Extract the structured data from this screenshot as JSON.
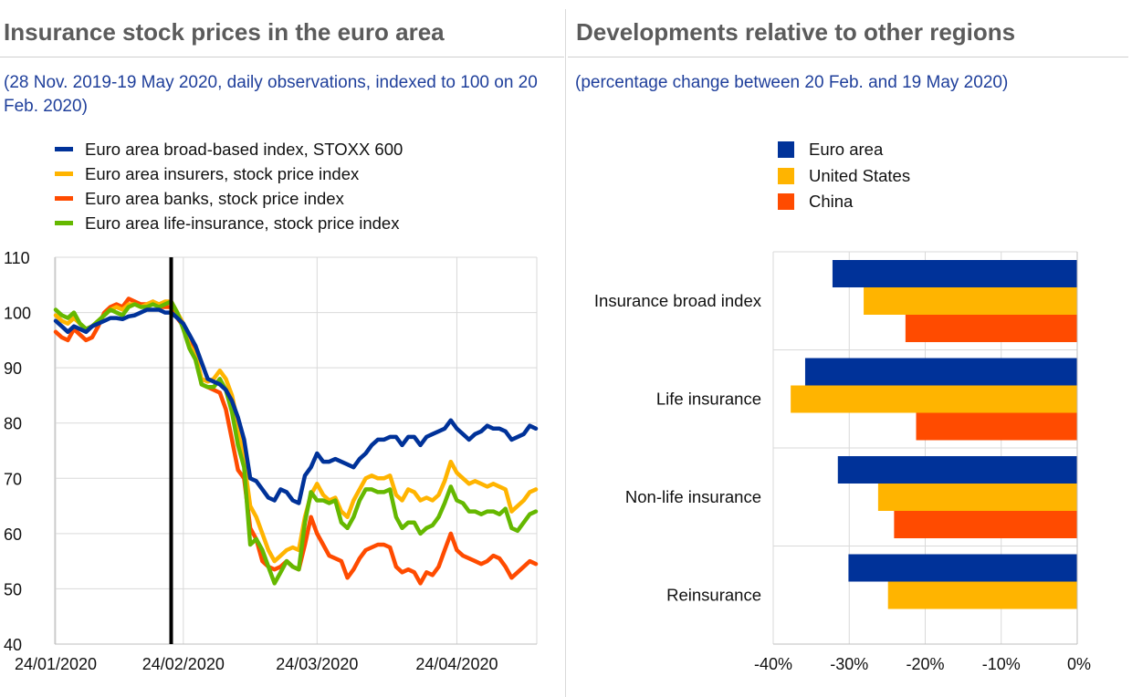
{
  "left": {
    "title": "Insurance stock prices in the euro area",
    "subtitle": "(28 Nov. 2019-19 May 2020, daily observations, indexed to 100 on 20 Feb. 2020)"
  },
  "right": {
    "title": "Developments relative to other regions",
    "subtitle": "(percentage change between 20 Feb. and 19 May 2020)"
  },
  "chart_data": [
    {
      "type": "line",
      "ylim": [
        40,
        110
      ],
      "yticks": [
        40,
        50,
        60,
        70,
        80,
        90,
        100,
        110
      ],
      "xticks": [
        {
          "label": "24/01/2020",
          "i": 0
        },
        {
          "label": "24/02/2020",
          "i": 21
        },
        {
          "label": "24/03/2020",
          "i": 43
        },
        {
          "label": "24/04/2020",
          "i": 66
        }
      ],
      "vline_index": 19,
      "colors": {
        "broad": "#003299",
        "insurers": "#ffb400",
        "banks": "#ff4b00",
        "life": "#65b800"
      },
      "series": [
        {
          "key": "broad",
          "name": "Euro area broad-based index, STOXX 600",
          "values": [
            98.5,
            97.5,
            96.5,
            97.5,
            97.0,
            96.5,
            97.5,
            98.0,
            98.5,
            99.0,
            99.0,
            98.8,
            99.3,
            99.5,
            100.0,
            100.5,
            100.5,
            100.5,
            100.0,
            100.0,
            99.0,
            98.0,
            96.0,
            94.0,
            91.0,
            88.0,
            87.5,
            87.0,
            86.0,
            84.0,
            81.0,
            77.0,
            70.0,
            69.5,
            68.0,
            66.5,
            66.0,
            68.0,
            67.5,
            66.0,
            65.5,
            70.5,
            72.0,
            74.5,
            73.0,
            73.0,
            73.5,
            73.0,
            72.5,
            72.0,
            73.5,
            74.5,
            76.0,
            77.0,
            77.0,
            77.5,
            77.5,
            76.0,
            77.5,
            77.5,
            76.0,
            77.5,
            78.0,
            78.5,
            79.0,
            80.5,
            79.0,
            78.0,
            77.0,
            78.0,
            78.5,
            79.5,
            79.0,
            79.0,
            78.5,
            77.0,
            77.5,
            78.0,
            79.5,
            79.0
          ]
        },
        {
          "key": "insurers",
          "name": "Euro area insurers, stock price index",
          "values": [
            99.5,
            98.5,
            98.0,
            99.0,
            98.0,
            97.0,
            97.5,
            98.5,
            99.5,
            100.5,
            101.0,
            100.5,
            101.5,
            101.5,
            101.0,
            101.5,
            102.0,
            101.5,
            102.0,
            102.0,
            100.0,
            98.0,
            94.0,
            92.5,
            88.0,
            87.5,
            88.0,
            89.5,
            88.0,
            85.0,
            80.0,
            73.0,
            65.0,
            63.0,
            60.0,
            57.0,
            55.0,
            56.0,
            57.0,
            57.5,
            57.0,
            63.0,
            67.0,
            69.0,
            67.0,
            66.0,
            66.5,
            64.0,
            63.0,
            66.0,
            68.0,
            70.0,
            70.5,
            70.0,
            70.0,
            70.5,
            67.0,
            66.0,
            68.0,
            67.5,
            66.0,
            66.5,
            66.0,
            67.0,
            69.5,
            73.0,
            71.0,
            70.0,
            69.0,
            69.5,
            69.0,
            68.5,
            69.0,
            68.5,
            68.0,
            64.0,
            65.0,
            66.0,
            67.5,
            68.0
          ]
        },
        {
          "key": "banks",
          "name": "Euro area banks, stock price index",
          "values": [
            96.5,
            95.5,
            95.0,
            97.0,
            96.0,
            95.0,
            95.5,
            97.5,
            100.0,
            101.0,
            101.5,
            101.0,
            102.5,
            102.0,
            101.5,
            101.5,
            102.0,
            101.0,
            101.0,
            101.0,
            99.0,
            97.5,
            95.5,
            93.0,
            87.0,
            86.5,
            86.0,
            85.5,
            82.5,
            77.0,
            71.5,
            70.0,
            61.0,
            59.0,
            55.0,
            54.0,
            53.5,
            54.0,
            55.0,
            54.0,
            53.5,
            58.0,
            63.0,
            60.0,
            58.0,
            56.0,
            55.5,
            55.0,
            52.0,
            53.5,
            55.5,
            57.0,
            57.5,
            58.0,
            58.0,
            57.5,
            54.0,
            53.0,
            53.5,
            53.0,
            51.0,
            53.0,
            52.5,
            54.0,
            57.0,
            60.0,
            57.0,
            56.0,
            55.5,
            55.0,
            54.5,
            55.0,
            56.0,
            55.5,
            54.0,
            52.0,
            53.0,
            54.0,
            55.0,
            54.5
          ]
        },
        {
          "key": "life",
          "name": "Euro area life-insurance, stock price index",
          "values": [
            100.5,
            99.5,
            99.0,
            100.0,
            98.0,
            97.0,
            97.5,
            98.5,
            99.5,
            100.5,
            100.0,
            99.5,
            101.0,
            101.5,
            101.0,
            101.0,
            101.5,
            101.0,
            101.5,
            102.0,
            100.0,
            97.0,
            93.5,
            91.5,
            87.0,
            86.5,
            86.5,
            88.0,
            86.0,
            82.0,
            76.0,
            72.0,
            58.0,
            59.0,
            57.0,
            54.0,
            51.0,
            53.0,
            55.0,
            54.0,
            53.5,
            62.0,
            67.5,
            66.0,
            66.0,
            65.5,
            66.0,
            62.0,
            61.0,
            63.0,
            66.0,
            68.0,
            68.0,
            67.5,
            67.5,
            68.0,
            63.0,
            61.0,
            62.0,
            62.0,
            60.0,
            61.0,
            61.5,
            63.0,
            65.5,
            68.5,
            66.0,
            65.5,
            64.0,
            64.0,
            63.5,
            64.0,
            64.0,
            63.5,
            64.5,
            61.0,
            60.5,
            62.0,
            63.5,
            64.0
          ]
        }
      ]
    },
    {
      "type": "bar",
      "orientation": "horizontal",
      "xlim": [
        -40,
        0
      ],
      "xticks": [
        -40,
        -30,
        -20,
        -10,
        0
      ],
      "xtick_labels": [
        "-40%",
        "-30%",
        "-20%",
        "-10%",
        "0%"
      ],
      "categories": [
        "Insurance broad index",
        "Life insurance",
        "Non-life insurance",
        "Reinsurance"
      ],
      "series": [
        {
          "name": "Euro area",
          "color": "#003299",
          "values": [
            -32.2,
            -35.8,
            -31.5,
            -30.1
          ]
        },
        {
          "name": "United States",
          "color": "#ffb400",
          "values": [
            -28.1,
            -37.7,
            -26.2,
            -24.9
          ]
        },
        {
          "name": "China",
          "color": "#ff4b00",
          "values": [
            -22.6,
            -21.2,
            -24.1,
            null
          ]
        }
      ]
    }
  ]
}
